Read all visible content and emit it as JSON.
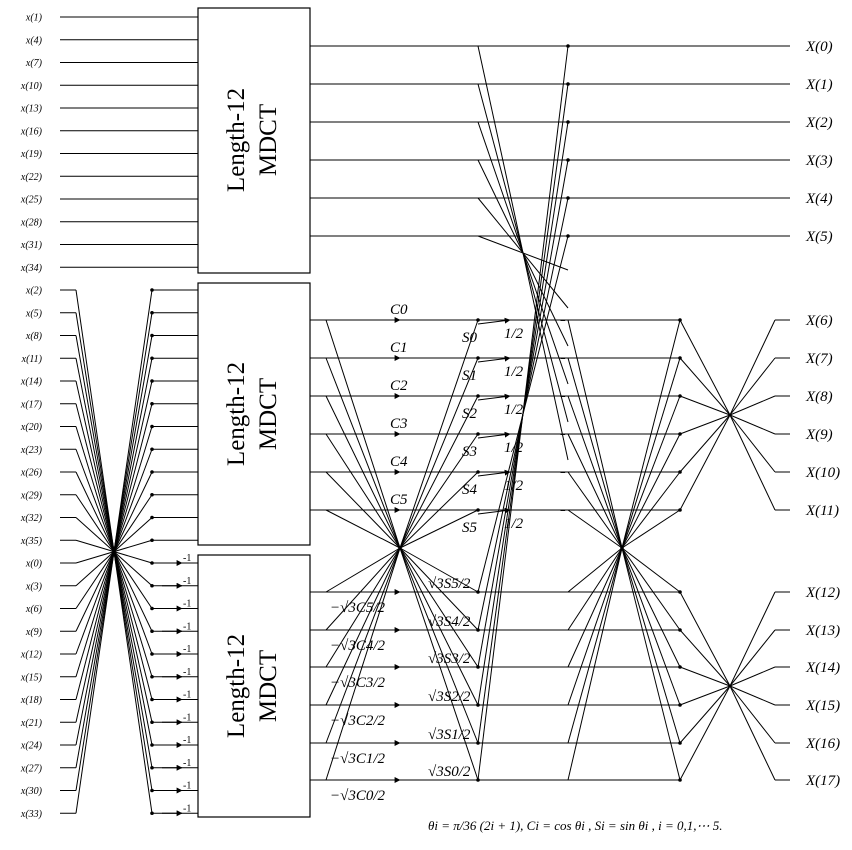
{
  "inputs": {
    "group1": [
      "x(1)",
      "x(4)",
      "x(7)",
      "x(10)",
      "x(13)",
      "x(16)",
      "x(19)",
      "x(22)",
      "x(25)",
      "x(28)",
      "x(31)",
      "x(34)"
    ],
    "group2": [
      "x(2)",
      "x(5)",
      "x(8)",
      "x(11)",
      "x(14)",
      "x(17)",
      "x(20)",
      "x(23)",
      "x(26)",
      "x(29)",
      "x(32)",
      "x(35)"
    ],
    "group3": [
      "x(0)",
      "x(3)",
      "x(6)",
      "x(9)",
      "x(12)",
      "x(15)",
      "x(18)",
      "x(21)",
      "x(24)",
      "x(27)",
      "x(30)",
      "x(33)"
    ]
  },
  "blocks": [
    {
      "line1": "Length-12",
      "line2": "MDCT"
    },
    {
      "line1": "Length-12",
      "line2": "MDCT"
    },
    {
      "line1": "Length-12",
      "line2": "MDCT"
    }
  ],
  "minus_one": "-1",
  "cos_coeffs": [
    "C0",
    "C1",
    "C2",
    "C3",
    "C4",
    "C5"
  ],
  "sin_coeffs": [
    "S0",
    "S1",
    "S2",
    "S3",
    "S4",
    "S5"
  ],
  "half_labels": [
    "1/2",
    "1/2",
    "1/2",
    "1/2",
    "1/2",
    "1/2"
  ],
  "sqrt_s_labels": [
    "√3S5/2",
    "√3S4/2",
    "√3S3/2",
    "√3S2/2",
    "√3S1/2",
    "√3S0/2"
  ],
  "neg_sqrt_c_labels": [
    "−√3C5/2",
    "−√3C4/2",
    "−√3C3/2",
    "−√3C2/2",
    "−√3C1/2",
    "−√3C0/2"
  ],
  "minus_sign": "−",
  "outputs": [
    "X(0)",
    "X(1)",
    "X(2)",
    "X(3)",
    "X(4)",
    "X(5)",
    "X(6)",
    "X(7)",
    "X(8)",
    "X(9)",
    "X(10)",
    "X(11)",
    "X(12)",
    "X(13)",
    "X(14)",
    "X(15)",
    "X(16)",
    "X(17)"
  ],
  "formula": "θi = π/36 (2i + 1), Ci = cos θi , Si = sin θi , i = 0,1,⋯ 5."
}
